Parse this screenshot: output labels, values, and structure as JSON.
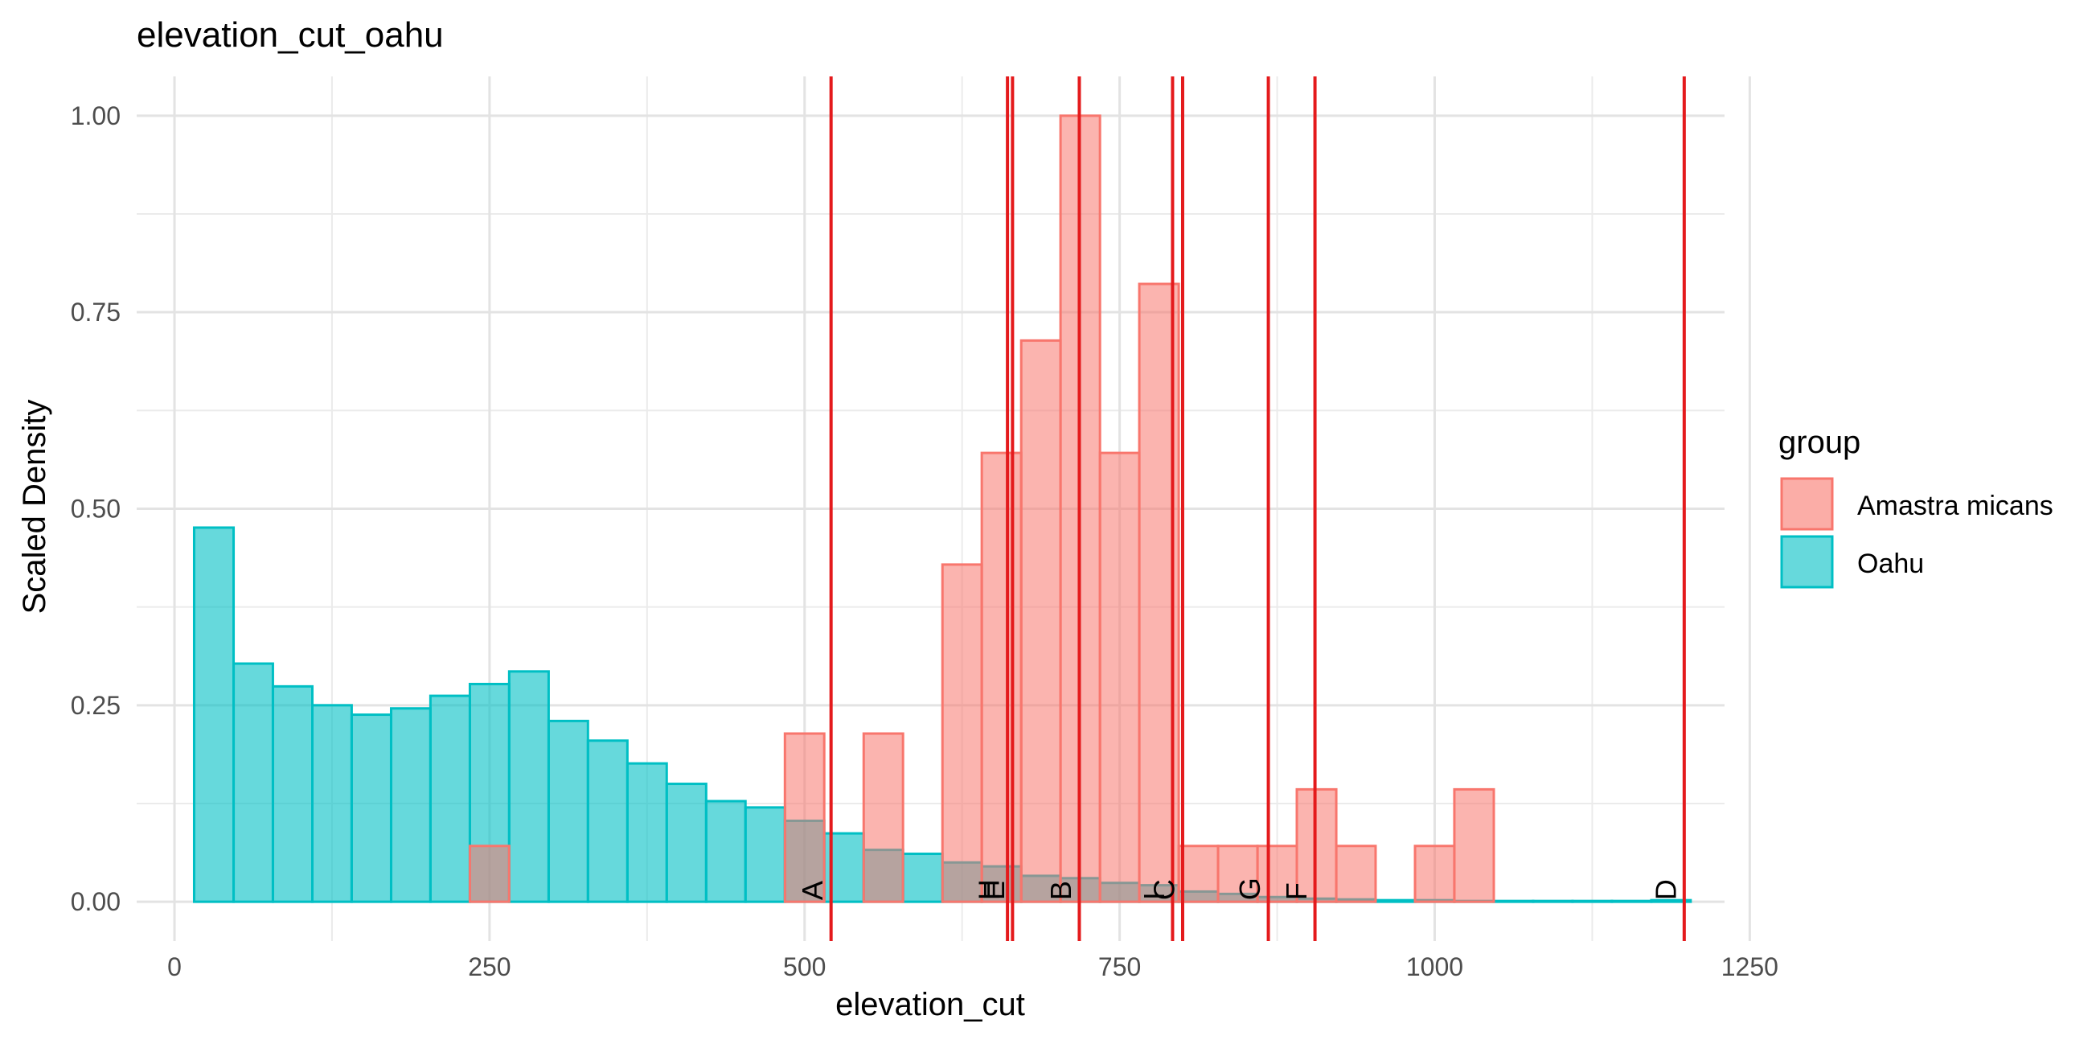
{
  "chart_data": {
    "type": "bar",
    "title": "elevation_cut_oahu",
    "xlabel": "elevation_cut",
    "ylabel": "Scaled Density",
    "xlim": [
      -30,
      1230
    ],
    "ylim": [
      -0.05,
      1.05
    ],
    "x_ticks": [
      0,
      250,
      500,
      750,
      1000,
      1250
    ],
    "y_ticks": [
      0.0,
      0.25,
      0.5,
      0.75,
      1.0
    ],
    "x_tick_labels": [
      "0",
      "250",
      "500",
      "750",
      "1000",
      "1250"
    ],
    "y_tick_labels": [
      "0.00",
      "0.25",
      "0.50",
      "0.75",
      "1.00"
    ],
    "grid": true,
    "bin_width": 31.25,
    "legend": {
      "title": "group",
      "position": "right",
      "entries": [
        {
          "label": "Amastra micans",
          "fill": "#F8766D",
          "stroke": "#F8766D"
        },
        {
          "label": "Oahu",
          "fill": "#00BFC4",
          "stroke": "#00BFC4"
        }
      ]
    },
    "series": [
      {
        "name": "Amastra micans",
        "color": "#F8766D",
        "bins": [
          {
            "x0": 234.4,
            "x1": 265.6,
            "y": 0.071
          },
          {
            "x0": 484.4,
            "x1": 515.6,
            "y": 0.214
          },
          {
            "x0": 546.9,
            "x1": 578.1,
            "y": 0.214
          },
          {
            "x0": 609.4,
            "x1": 640.6,
            "y": 0.429
          },
          {
            "x0": 640.6,
            "x1": 671.9,
            "y": 0.571
          },
          {
            "x0": 671.9,
            "x1": 703.1,
            "y": 0.714
          },
          {
            "x0": 703.1,
            "x1": 734.4,
            "y": 1.0
          },
          {
            "x0": 734.4,
            "x1": 765.6,
            "y": 0.571
          },
          {
            "x0": 765.6,
            "x1": 796.9,
            "y": 0.786
          },
          {
            "x0": 796.9,
            "x1": 828.1,
            "y": 0.071
          },
          {
            "x0": 828.1,
            "x1": 859.4,
            "y": 0.071
          },
          {
            "x0": 859.4,
            "x1": 890.6,
            "y": 0.071
          },
          {
            "x0": 890.6,
            "x1": 921.9,
            "y": 0.143
          },
          {
            "x0": 921.9,
            "x1": 953.1,
            "y": 0.071
          },
          {
            "x0": 984.4,
            "x1": 1015.6,
            "y": 0.071
          },
          {
            "x0": 1015.6,
            "x1": 1046.9,
            "y": 0.143
          }
        ]
      },
      {
        "name": "Oahu",
        "color": "#00BFC4",
        "bins": [
          {
            "x0": 15.6,
            "x1": 46.9,
            "y": 0.476
          },
          {
            "x0": 46.9,
            "x1": 78.1,
            "y": 0.303
          },
          {
            "x0": 78.1,
            "x1": 109.4,
            "y": 0.274
          },
          {
            "x0": 109.4,
            "x1": 140.6,
            "y": 0.25
          },
          {
            "x0": 140.6,
            "x1": 171.9,
            "y": 0.238
          },
          {
            "x0": 171.9,
            "x1": 203.1,
            "y": 0.246
          },
          {
            "x0": 203.1,
            "x1": 234.4,
            "y": 0.262
          },
          {
            "x0": 234.4,
            "x1": 265.6,
            "y": 0.277
          },
          {
            "x0": 265.6,
            "x1": 296.9,
            "y": 0.293
          },
          {
            "x0": 296.9,
            "x1": 328.1,
            "y": 0.23
          },
          {
            "x0": 328.1,
            "x1": 359.4,
            "y": 0.205
          },
          {
            "x0": 359.4,
            "x1": 390.6,
            "y": 0.176
          },
          {
            "x0": 390.6,
            "x1": 421.9,
            "y": 0.15
          },
          {
            "x0": 421.9,
            "x1": 453.1,
            "y": 0.128
          },
          {
            "x0": 453.1,
            "x1": 484.4,
            "y": 0.12
          },
          {
            "x0": 484.4,
            "x1": 515.6,
            "y": 0.103
          },
          {
            "x0": 515.6,
            "x1": 546.9,
            "y": 0.087
          },
          {
            "x0": 546.9,
            "x1": 578.1,
            "y": 0.066
          },
          {
            "x0": 578.1,
            "x1": 609.4,
            "y": 0.061
          },
          {
            "x0": 609.4,
            "x1": 640.6,
            "y": 0.05
          },
          {
            "x0": 640.6,
            "x1": 671.9,
            "y": 0.045
          },
          {
            "x0": 671.9,
            "x1": 703.1,
            "y": 0.033
          },
          {
            "x0": 703.1,
            "x1": 734.4,
            "y": 0.03
          },
          {
            "x0": 734.4,
            "x1": 765.6,
            "y": 0.024
          },
          {
            "x0": 765.6,
            "x1": 796.9,
            "y": 0.021
          },
          {
            "x0": 796.9,
            "x1": 828.1,
            "y": 0.013
          },
          {
            "x0": 828.1,
            "x1": 859.4,
            "y": 0.01
          },
          {
            "x0": 859.4,
            "x1": 890.6,
            "y": 0.006
          },
          {
            "x0": 890.6,
            "x1": 921.9,
            "y": 0.004
          },
          {
            "x0": 921.9,
            "x1": 953.1,
            "y": 0.003
          },
          {
            "x0": 953.1,
            "x1": 984.4,
            "y": 0.002
          },
          {
            "x0": 984.4,
            "x1": 1015.6,
            "y": 0.002
          },
          {
            "x0": 1015.6,
            "x1": 1046.9,
            "y": 0.001
          },
          {
            "x0": 1046.9,
            "x1": 1078.1,
            "y": 0.001
          },
          {
            "x0": 1078.1,
            "x1": 1109.4,
            "y": 0.001
          },
          {
            "x0": 1109.4,
            "x1": 1140.6,
            "y": 0.001
          },
          {
            "x0": 1140.6,
            "x1": 1171.9,
            "y": 0.001
          },
          {
            "x0": 1171.9,
            "x1": 1203.1,
            "y": 0.002
          }
        ]
      }
    ],
    "vlines": {
      "color": "#E41A1C",
      "lines": [
        {
          "label": "A",
          "x": 521
        },
        {
          "label": "H",
          "x": 661
        },
        {
          "label": "E",
          "x": 665
        },
        {
          "label": "B",
          "x": 718
        },
        {
          "label": "I",
          "x": 792
        },
        {
          "label": "C",
          "x": 800
        },
        {
          "label": "G",
          "x": 868
        },
        {
          "label": "F",
          "x": 905
        },
        {
          "label": "D",
          "x": 1198
        }
      ]
    }
  }
}
